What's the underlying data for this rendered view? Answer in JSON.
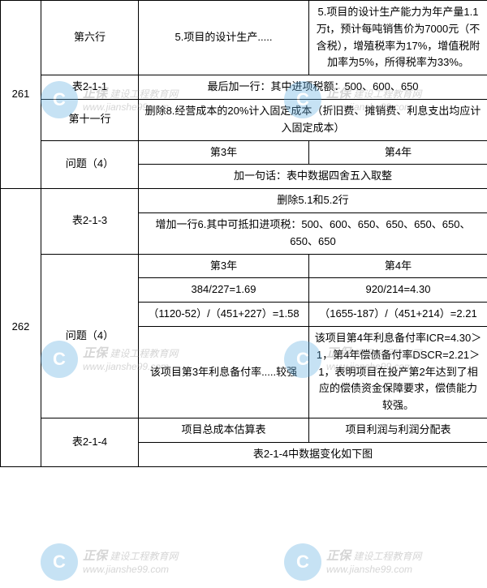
{
  "rows": {
    "r261_a_col1": "261",
    "r261_a_col2": "第六行",
    "r261_a_col3": "5.项目的设计生产.....",
    "r261_a_col4": "5.项目的设计生产能力为年产量1.1万t，预计每吨销售价为7000元（不含税），增殖税率为17%，增值税附加率为5%，所得税率为33%。",
    "r261_b_col2": "表2-1-1",
    "r261_b_col34": "最后加一行：其中进项税额：500、600、650",
    "r261_c_col2": "第十一行",
    "r261_c_col34": "删除8.经营成本的20%计入固定成本（折旧费、摊销费、利息支出均应计入固定成本）",
    "r261_d_col2": "问题（4）",
    "r261_d_col3": "第3年",
    "r261_d_col4": "第4年",
    "r261_e_col34": "加一句话：表中数据四舍五入取整",
    "r262_a_col2": "表2-1-3",
    "r262_a_col34": "删除5.1和5.2行",
    "r262_b_col34": "增加一行6.其中可抵扣进项税：500、600、650、650、650、650、650、650",
    "r262_c_col1": "262",
    "r262_c_col2": "问题（4）",
    "r262_c_col3": "第3年",
    "r262_c_col4": "第4年",
    "r262_d_col3": "384/227=1.69",
    "r262_d_col4": "920/214=4.30",
    "r262_e_col3": "（1120-52）/（451+227）=1.58",
    "r262_e_col4": "（1655-187）/（451+214）=2.21",
    "r262_f_col3": "该项目第3年利息备付率.....较强",
    "r262_f_col4": "该项目第4年利息备付率ICR=4.30＞1，第4年偿债备付率DSCR=2.21＞1，表明项目在投产第2年达到了相应的偿债资金保障要求，偿债能力较强。",
    "r262_g_col2": "表2-1-4",
    "r262_g_col3": "项目总成本估算表",
    "r262_g_col4": "项目利润与利润分配表",
    "r262_h_col34": "表2-1-4中数据变化如下图"
  },
  "watermark": {
    "brand_main": "正保",
    "brand_sub": "建设工程教育网",
    "url": "www.jianshe99.com",
    "circle_char": "C"
  },
  "styling": {
    "background_color": "#ffffff",
    "border_color": "#000000",
    "font_size": 13,
    "text_color": "#000000",
    "watermark_circle_color": "#5dade2",
    "watermark_text_color": "#888888",
    "watermark_opacity": 0.35
  }
}
